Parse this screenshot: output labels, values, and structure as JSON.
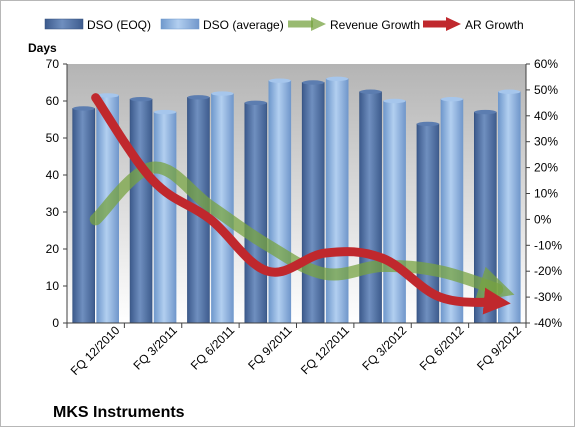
{
  "chart_data": {
    "type": "bar",
    "title": "MKS Instruments",
    "ylabel": "Days",
    "ylim": [
      0,
      70
    ],
    "yticks": [
      "0",
      "10",
      "20",
      "30",
      "40",
      "50",
      "60",
      "70"
    ],
    "y2lim": [
      -40,
      60
    ],
    "y2ticks": [
      "-40%",
      "-30%",
      "-20%",
      "-10%",
      "0%",
      "10%",
      "20%",
      "30%",
      "40%",
      "50%",
      "60%"
    ],
    "categories": [
      "FQ 12/2010",
      "FQ 3/2011",
      "FQ 6/2011",
      "FQ 9/2011",
      "FQ 12/2011",
      "FQ 3/2012",
      "FQ 6/2012",
      "FQ 9/2012"
    ],
    "bar_series": [
      {
        "name": "DSO (EOQ)",
        "color": "#4f6f9f",
        "values": [
          58,
          60.5,
          61,
          59.5,
          65,
          62.5,
          53.8,
          57
        ]
      },
      {
        "name": "DSO (average)",
        "color": "#8fb4e3",
        "values": [
          61.5,
          57,
          62,
          65.5,
          66,
          60,
          60.5,
          62.5
        ]
      }
    ],
    "line_series": [
      {
        "name": "Revenue Growth",
        "color": "#77a342",
        "axis": "right",
        "values": [
          0,
          20,
          5,
          -10,
          -21,
          -18,
          -20,
          -27
        ]
      },
      {
        "name": "AR Growth",
        "color": "#c0282d",
        "axis": "right",
        "values": [
          47,
          15,
          0,
          -20,
          -13,
          -15,
          -30,
          -32
        ]
      }
    ],
    "legend_position": "top",
    "grid": false
  }
}
